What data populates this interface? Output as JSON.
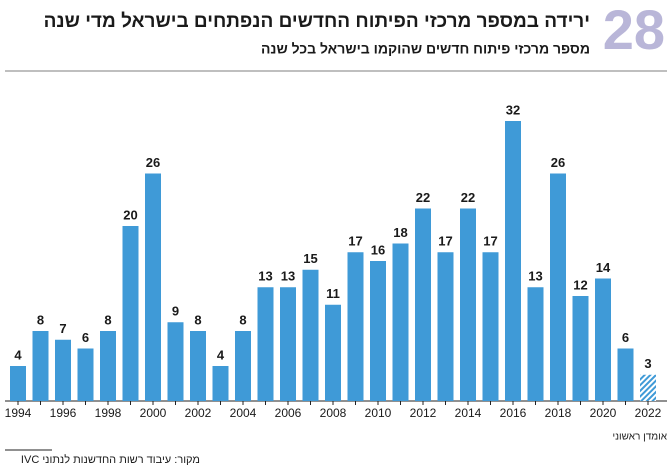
{
  "chart_data": {
    "type": "bar",
    "badge": "28",
    "title": "ירידה במספר מרכזי הפיתוח החדשים הנפתחים בישראל מדי שנה",
    "subtitle": "מספר מרכזי פיתוח חדשים שהוקמו בישראל בכל שנה",
    "categories": [
      "1994",
      null,
      "1996",
      null,
      "1998",
      null,
      "2000",
      null,
      "2002",
      null,
      "2004",
      null,
      "2006",
      null,
      "2008",
      null,
      "2010",
      null,
      "2012",
      null,
      "2014",
      null,
      "2016",
      null,
      "2018",
      null,
      "2020",
      null,
      "2022"
    ],
    "values": [
      4,
      8,
      7,
      6,
      8,
      20,
      26,
      9,
      8,
      4,
      8,
      13,
      13,
      15,
      11,
      17,
      16,
      18,
      22,
      17,
      22,
      17,
      32,
      13,
      26,
      12,
      14,
      6,
      3
    ],
    "color": "#3f9ad7",
    "hatch_last": true,
    "note": "אומדן ראשוני",
    "source": "מקור: עיבוד רשות החדשנות לנתוני IVC"
  }
}
